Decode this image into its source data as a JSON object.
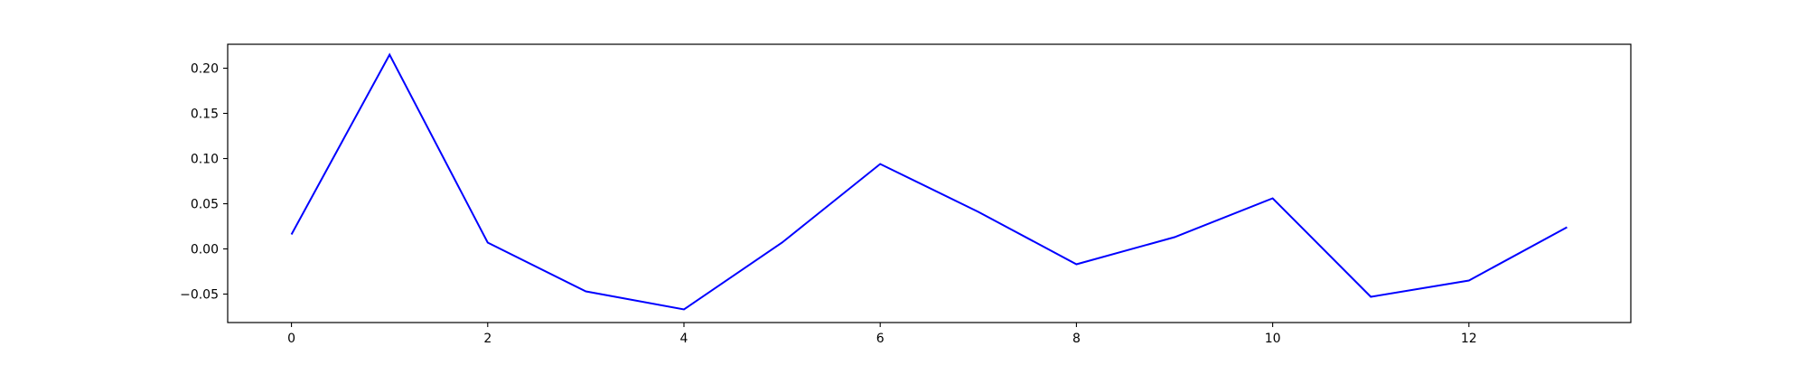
{
  "chart_data": {
    "type": "line",
    "title": "",
    "xlabel": "",
    "ylabel": "",
    "xlim": [
      -0.65,
      13.65
    ],
    "ylim": [
      -0.0815,
      0.2265
    ],
    "grid": false,
    "x_ticks": [
      0,
      2,
      4,
      6,
      8,
      10,
      12
    ],
    "y_ticks": [
      -0.05,
      0.0,
      0.05,
      0.1,
      0.15,
      0.2
    ],
    "x_tick_labels": [
      "0",
      "2",
      "4",
      "6",
      "8",
      "10",
      "12"
    ],
    "y_tick_labels": [
      "−0.05",
      "0.00",
      "0.05",
      "0.10",
      "0.15",
      "0.20"
    ],
    "series": [
      {
        "color": "#0000ff",
        "x": [
          0,
          1,
          2,
          3,
          4,
          5,
          6,
          7,
          8,
          9,
          10,
          11,
          12,
          13
        ],
        "y": [
          0.016,
          0.215,
          0.007,
          -0.047,
          -0.067,
          0.007,
          0.094,
          0.041,
          -0.017,
          0.013,
          0.056,
          -0.053,
          -0.035,
          0.024
        ]
      }
    ]
  }
}
